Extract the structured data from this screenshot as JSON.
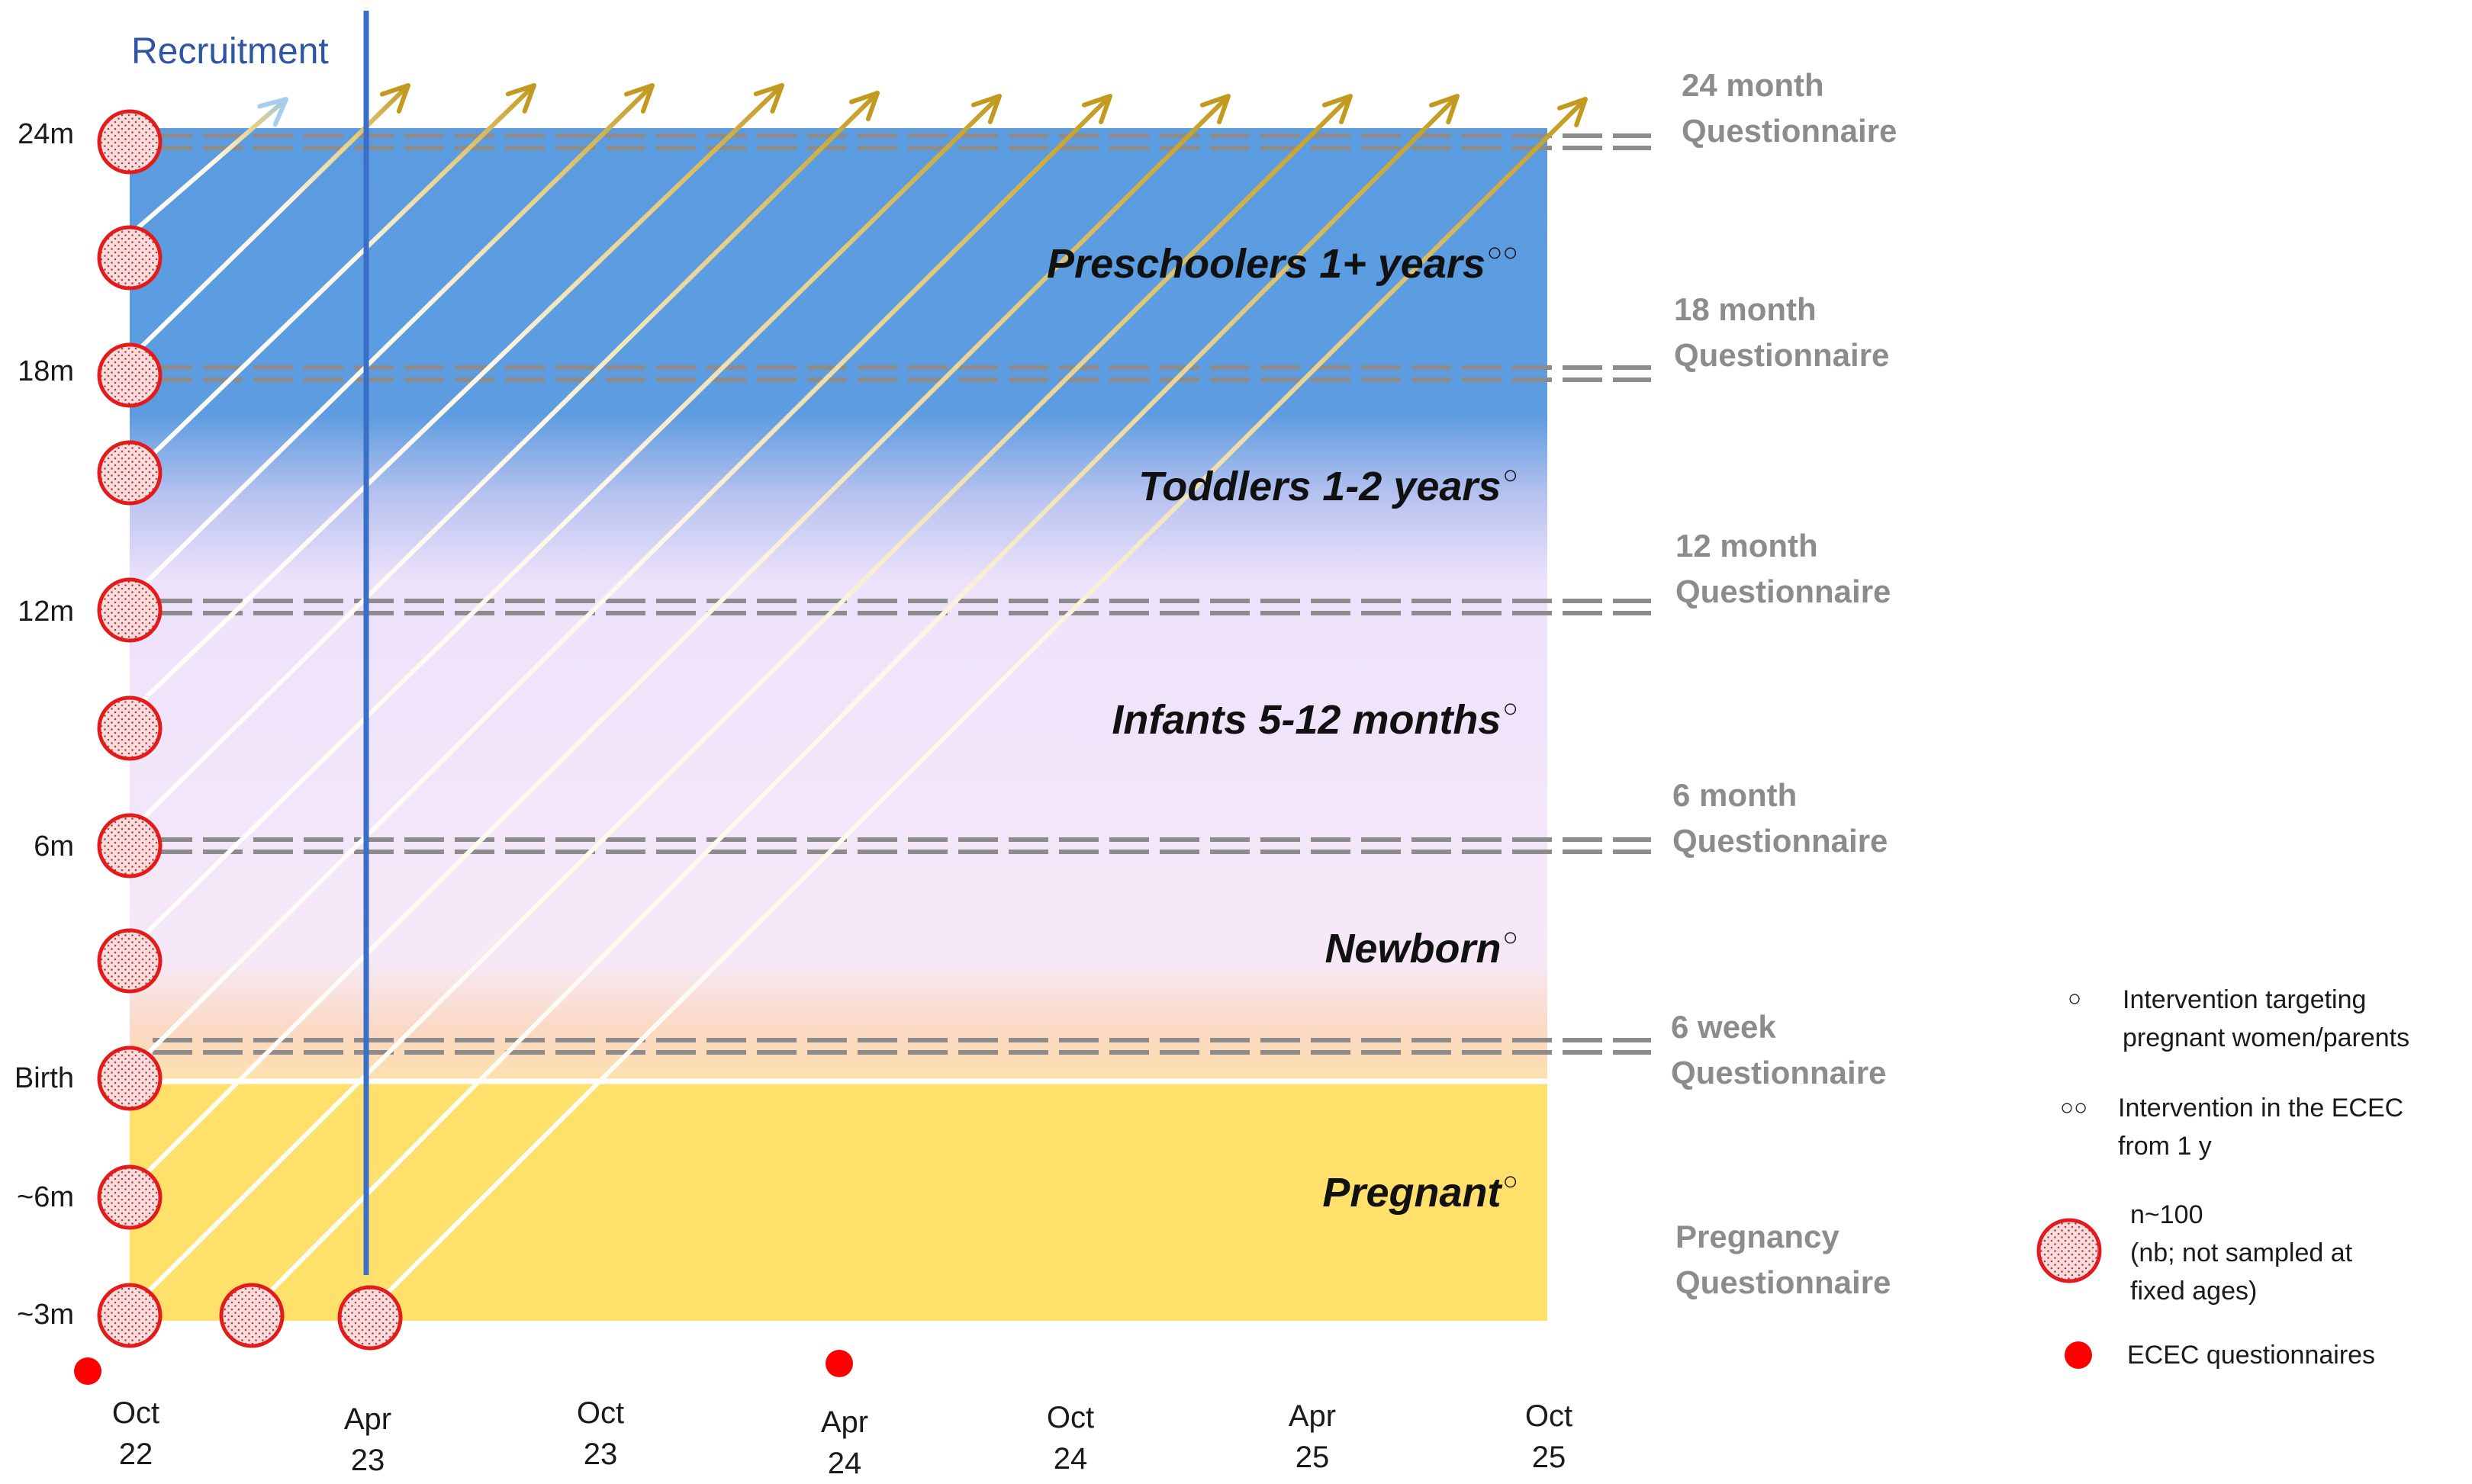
{
  "recruitment_label": "Recruitment",
  "y_axis": {
    "labels": [
      "24m",
      "18m",
      "12m",
      "6m",
      "Birth",
      "~6m",
      "~3m"
    ]
  },
  "x_axis": {
    "labels": [
      "Oct\n22",
      "Apr\n23",
      "Oct\n23",
      "Apr\n24",
      "Oct\n24",
      "Apr\n25",
      "Oct\n25"
    ]
  },
  "phases": [
    {
      "label": "Preschoolers 1+ years",
      "mark": "○○"
    },
    {
      "label": "Toddlers 1-2 years",
      "mark": "○"
    },
    {
      "label": "Infants 5-12 months",
      "mark": "○"
    },
    {
      "label": "Newborn",
      "mark": "○"
    },
    {
      "label": "Pregnant",
      "mark": "○"
    }
  ],
  "questionnaires": [
    "24 month\nQuestionnaire",
    "18 month\nQuestionnaire",
    "12 month\nQuestionnaire",
    "6 month\nQuestionnaire",
    "6 week\nQuestionnaire",
    "Pregnancy\nQuestionnaire"
  ],
  "legend": [
    {
      "symbol": "○",
      "text": "Intervention targeting\npregnant women/parents"
    },
    {
      "symbol": "○○",
      "text": "Intervention in the ECEC\nfrom 1 y"
    },
    {
      "symbol": "sample-circle-icon",
      "text": "n~100\n(nb; not sampled at\nfixed ages)"
    },
    {
      "symbol": "red-dot-icon",
      "text": "ECEC questionnaires"
    }
  ],
  "colors": {
    "preschool_blue": "#5b9bdf",
    "infant_lavender": "#f1e4f8",
    "pregnancy_yellow": "#ffe06b",
    "recruitment_line": "#3a6fc7",
    "sample_circle": "#e31b1b",
    "ecec_dot": "#ff0000",
    "questionnaire_gray": "#8c8c8c"
  }
}
